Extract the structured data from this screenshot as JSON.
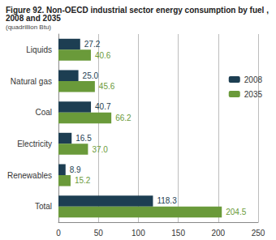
{
  "chart_data": {
    "type": "bar",
    "orientation": "horizontal",
    "title": "Figure 92. Non-OECD industrial sector energy consumption by fuel , 2008 and 2035",
    "subtitle": "(quadrillion Btu)",
    "categories": [
      "Liquids",
      "Natural gas",
      "Coal",
      "Electricity",
      "Renewables",
      "Total"
    ],
    "series": [
      {
        "name": "2008",
        "color": "#1d3e52",
        "values": [
          27.2,
          25.0,
          40.7,
          16.5,
          8.9,
          118.3
        ],
        "value_labels": [
          "27.2",
          "25.0",
          "40.7",
          "16.5",
          "8.9",
          "118.3"
        ]
      },
      {
        "name": "2035",
        "color": "#6a9a3a",
        "values": [
          40.6,
          45.6,
          66.2,
          37.0,
          15.2,
          204.5
        ],
        "value_labels": [
          "40.6",
          "45.6",
          "66.2",
          "37.0",
          "15.2",
          "204.5"
        ]
      }
    ],
    "xlim": [
      0,
      250
    ],
    "xticks": [
      0,
      50,
      100,
      150,
      200,
      250
    ],
    "grid": true,
    "data_labels": true,
    "legend": "right"
  }
}
